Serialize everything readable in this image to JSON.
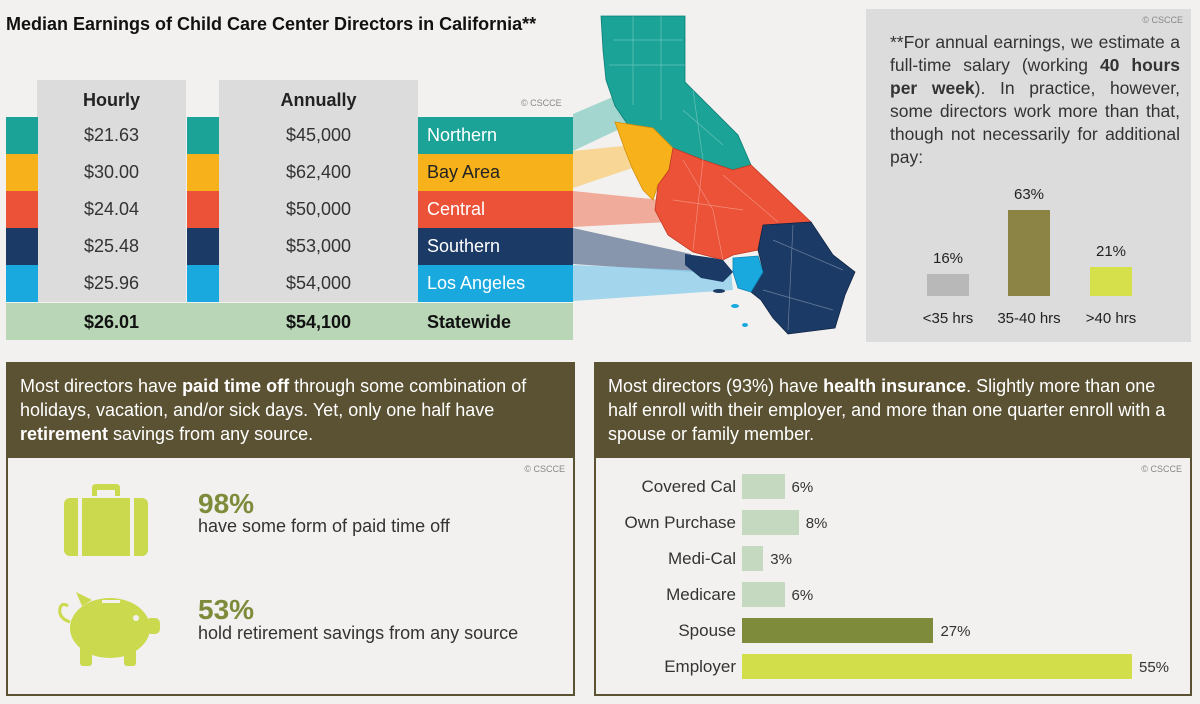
{
  "title": "Median Earnings of Child Care Center Directors in California**",
  "copyright": "© CSCCE",
  "earnings_table": {
    "headers": {
      "hourly": "Hourly",
      "annually": "Annually"
    },
    "rows": [
      {
        "region": "Northern",
        "hourly": "$21.63",
        "annually": "$45,000",
        "color": "#1aa396"
      },
      {
        "region": "Bay Area",
        "hourly": "$30.00",
        "annually": "$62,400",
        "color": "#f7b21b"
      },
      {
        "region": "Central",
        "hourly": "$24.04",
        "annually": "$50,000",
        "color": "#ec5238"
      },
      {
        "region": "Southern",
        "hourly": "$25.48",
        "annually": "$53,000",
        "color": "#1b3a66"
      },
      {
        "region": "Los Angeles",
        "hourly": "$25.96",
        "annually": "$54,000",
        "color": "#1aa9df"
      }
    ],
    "total": {
      "region": "Statewide",
      "hourly": "$26.01",
      "annually": "$54,100",
      "color": "#b9d6b6"
    }
  },
  "note": {
    "text_a": "**For annual earnings, we estimate a full-time salary (working ",
    "text_bold": "40 hours per week",
    "text_b": "). In practice, however, some directors work more than that, though not necessarily for additional pay:"
  },
  "hours_chart": {
    "type": "bar",
    "categories": [
      "<35 hrs",
      "35-40 hrs",
      ">40 hrs"
    ],
    "values": [
      16,
      63,
      21
    ],
    "labels": [
      "16%",
      "63%",
      "21%"
    ],
    "colors": [
      "#b8b8b8",
      "#8c8445",
      "#d6e04a"
    ]
  },
  "pto_panel": {
    "head_a": "Most directors have ",
    "head_b1": "paid time off",
    "head_c": " through some combination of holidays, vacation, and/or sick days. Yet, only one half have ",
    "head_b2": "retirement",
    "head_d": " savings from any source.",
    "stat1_value": "98%",
    "stat1_text": "have some form of paid time off",
    "stat2_value": "53%",
    "stat2_text": "hold retirement savings from any source",
    "icon1": "suitcase-icon",
    "icon2": "piggy-bank-icon"
  },
  "health_panel": {
    "head_a": "Most directors (93%) have ",
    "head_b": "health insurance",
    "head_c": ". Slightly more than one half enroll with their employer, and more than one quarter enroll with a spouse or family member."
  },
  "chart_data": [
    {
      "type": "bar",
      "categories": [
        "<35 hrs",
        "35-40 hrs",
        ">40 hrs"
      ],
      "values": [
        16,
        63,
        21
      ]
    },
    {
      "type": "bar",
      "orientation": "horizontal",
      "categories": [
        "Covered Cal",
        "Own Purchase",
        "Medi-Cal",
        "Medicare",
        "Spouse",
        "Employer"
      ],
      "values": [
        6,
        8,
        3,
        6,
        27,
        55
      ],
      "labels": [
        "6%",
        "8%",
        "3%",
        "6%",
        "27%",
        "55%"
      ],
      "colors": [
        "#c4d9c0",
        "#c4d9c0",
        "#c4d9c0",
        "#c4d9c0",
        "#7e8b3a",
        "#d3df4a"
      ]
    }
  ]
}
